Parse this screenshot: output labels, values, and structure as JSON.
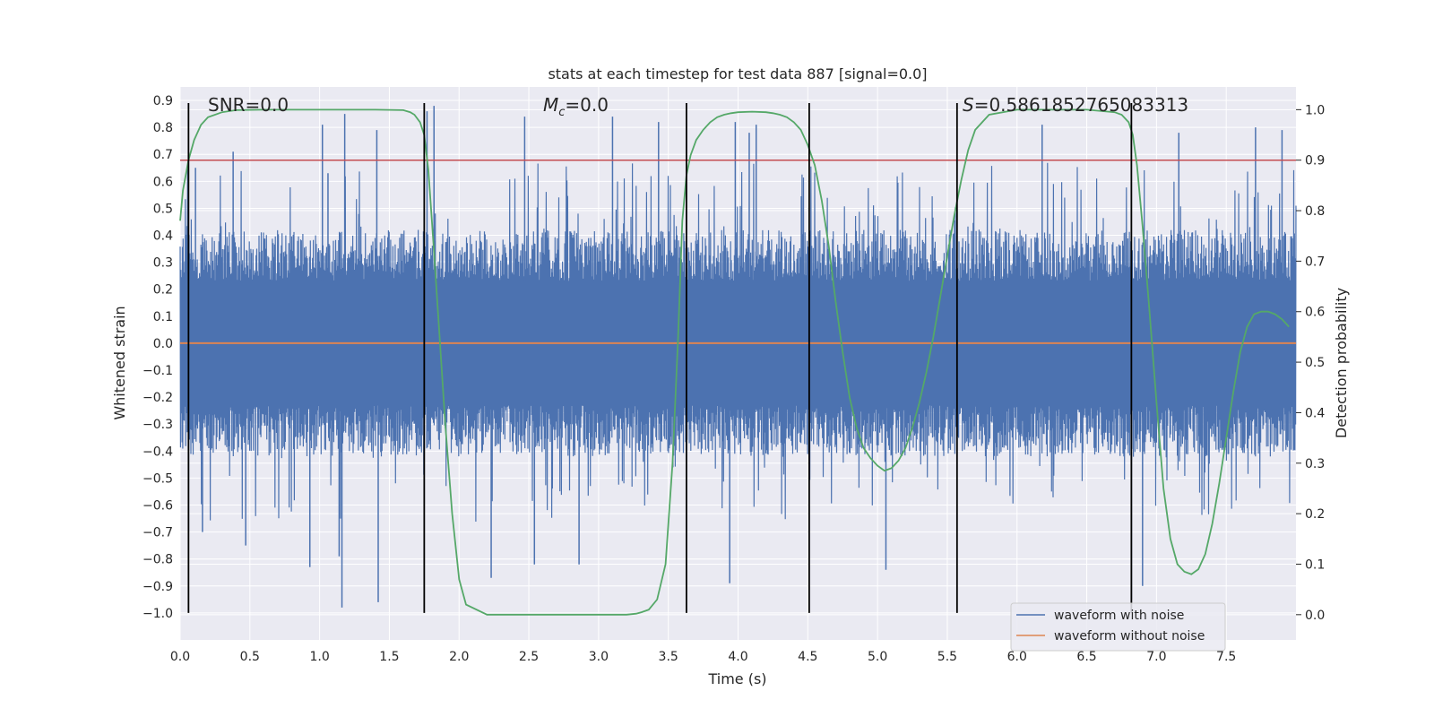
{
  "chart_data": {
    "type": "line",
    "title": "stats at each timestep for test data 887 [signal=0.0]",
    "xlabel": "Time (s)",
    "ylabel": "Whitened strain",
    "ylabel_right": "Detection probability",
    "xlim": [
      0.0,
      8.0
    ],
    "ylim": [
      -1.1,
      0.95
    ],
    "ylim_right": [
      -0.05,
      1.045
    ],
    "x_ticks": [
      0.0,
      0.5,
      1.0,
      1.5,
      2.0,
      2.5,
      3.0,
      3.5,
      4.0,
      4.5,
      5.0,
      5.5,
      6.0,
      6.5,
      7.0,
      7.5
    ],
    "x_tick_labels": [
      "0.0",
      "0.5",
      "1.0",
      "1.5",
      "2.0",
      "2.5",
      "3.0",
      "3.5",
      "4.0",
      "4.5",
      "5.0",
      "5.5",
      "6.0",
      "6.5",
      "7.0",
      "7.5"
    ],
    "y_ticks": [
      0.9,
      0.8,
      0.7,
      0.6,
      0.5,
      0.4,
      0.3,
      0.2,
      0.1,
      0.0,
      -0.1,
      -0.2,
      -0.3,
      -0.4,
      -0.5,
      -0.6,
      -0.7,
      -0.8,
      -0.9,
      -1.0
    ],
    "y_tick_labels": [
      "0.9",
      "0.8",
      "0.7",
      "0.6",
      "0.5",
      "0.4",
      "0.3",
      "0.2",
      "0.1",
      "0.0",
      "−0.1",
      "−0.2",
      "−0.3",
      "−0.4",
      "−0.5",
      "−0.6",
      "−0.7",
      "−0.8",
      "−0.9",
      "−1.0"
    ],
    "y_right_ticks": [
      1.0,
      0.9,
      0.8,
      0.7,
      0.6,
      0.5,
      0.4,
      0.3,
      0.2,
      0.1,
      0.0
    ],
    "y_right_tick_labels": [
      "1.0",
      "0.9",
      "0.8",
      "0.7",
      "0.6",
      "0.5",
      "0.4",
      "0.3",
      "0.2",
      "0.1",
      "0.0"
    ],
    "threshold": {
      "value": 0.9,
      "axis": "right",
      "color": "#c44e52"
    },
    "vertical_lines_x": [
      0.06,
      1.75,
      3.63,
      4.51,
      5.57,
      6.82
    ],
    "vertical_lines_yrange": [
      -1.0,
      0.89
    ],
    "annotations": {
      "snr": "SNR=0.0",
      "mc_symbol": "M",
      "mc_sub": "c",
      "mc_value": "=0.0",
      "s_symbol": "S",
      "s_value": "=0.5861852765083313"
    },
    "noise_band_core": [
      -0.42,
      0.42
    ],
    "series": [
      {
        "name": "waveform with noise",
        "axis": "left",
        "color": "#4c72b0",
        "style": "dense noise",
        "spike_peaks": [
          {
            "x": 0.06,
            "y": -0.7
          },
          {
            "x": 0.11,
            "y": 0.65
          },
          {
            "x": 0.16,
            "y": -0.7
          },
          {
            "x": 0.38,
            "y": 0.71
          },
          {
            "x": 0.47,
            "y": -0.75
          },
          {
            "x": 0.93,
            "y": -0.83
          },
          {
            "x": 1.02,
            "y": 0.81
          },
          {
            "x": 1.06,
            "y": 0.63
          },
          {
            "x": 1.14,
            "y": -0.79
          },
          {
            "x": 1.16,
            "y": -0.98
          },
          {
            "x": 1.18,
            "y": 0.85
          },
          {
            "x": 1.41,
            "y": 0.79
          },
          {
            "x": 1.42,
            "y": -0.96
          },
          {
            "x": 1.77,
            "y": 0.86
          },
          {
            "x": 1.82,
            "y": 0.88
          },
          {
            "x": 2.23,
            "y": -0.87
          },
          {
            "x": 2.47,
            "y": 0.84
          },
          {
            "x": 2.54,
            "y": -0.82
          },
          {
            "x": 2.86,
            "y": -0.82
          },
          {
            "x": 3.1,
            "y": 0.84
          },
          {
            "x": 3.43,
            "y": 0.82
          },
          {
            "x": 3.94,
            "y": -0.89
          },
          {
            "x": 3.98,
            "y": 0.82
          },
          {
            "x": 4.08,
            "y": 0.78
          },
          {
            "x": 4.13,
            "y": 0.81
          },
          {
            "x": 5.06,
            "y": -0.84
          },
          {
            "x": 6.18,
            "y": 0.81
          },
          {
            "x": 6.82,
            "y": -0.95
          },
          {
            "x": 6.9,
            "y": -0.9
          },
          {
            "x": 7.16,
            "y": 0.78
          },
          {
            "x": 7.71,
            "y": 0.8
          },
          {
            "x": 7.9,
            "y": 0.79
          }
        ]
      },
      {
        "name": "waveform without noise",
        "axis": "left",
        "color": "#dd8452",
        "x": [
          0.0,
          8.0
        ],
        "y": [
          0.0,
          0.0
        ]
      },
      {
        "name": "Detection probability",
        "axis": "right",
        "color": "#55a868",
        "x": [
          0.0,
          0.02,
          0.06,
          0.1,
          0.15,
          0.2,
          0.3,
          0.4,
          0.6,
          1.0,
          1.4,
          1.6,
          1.65,
          1.68,
          1.72,
          1.75,
          1.78,
          1.82,
          1.86,
          1.9,
          1.95,
          2.0,
          2.05,
          2.2,
          2.6,
          3.0,
          3.2,
          3.27,
          3.31,
          3.36,
          3.42,
          3.48,
          3.53,
          3.57,
          3.6,
          3.63,
          3.66,
          3.7,
          3.75,
          3.8,
          3.85,
          3.9,
          3.95,
          4.0,
          4.1,
          4.2,
          4.25,
          4.3,
          4.35,
          4.4,
          4.45,
          4.5,
          4.55,
          4.6,
          4.65,
          4.7,
          4.75,
          4.8,
          4.85,
          4.9,
          4.95,
          5.0,
          5.05,
          5.1,
          5.15,
          5.2,
          5.25,
          5.3,
          5.35,
          5.4,
          5.45,
          5.5,
          5.55,
          5.6,
          5.65,
          5.7,
          5.8,
          6.0,
          6.5,
          6.7,
          6.75,
          6.8,
          6.83,
          6.86,
          6.9,
          6.95,
          7.0,
          7.05,
          7.1,
          7.15,
          7.2,
          7.25,
          7.3,
          7.35,
          7.4,
          7.45,
          7.5,
          7.55,
          7.6,
          7.65,
          7.7,
          7.75,
          7.8,
          7.85,
          7.9,
          7.95
        ],
        "y": [
          0.78,
          0.84,
          0.9,
          0.94,
          0.97,
          0.985,
          0.995,
          0.999,
          1.0,
          1.0,
          1.0,
          0.999,
          0.995,
          0.99,
          0.975,
          0.95,
          0.88,
          0.72,
          0.55,
          0.38,
          0.2,
          0.07,
          0.02,
          0.0,
          0.0,
          0.0,
          0.0,
          0.002,
          0.005,
          0.01,
          0.03,
          0.1,
          0.3,
          0.55,
          0.78,
          0.87,
          0.91,
          0.94,
          0.96,
          0.975,
          0.985,
          0.99,
          0.993,
          0.995,
          0.996,
          0.995,
          0.993,
          0.99,
          0.985,
          0.975,
          0.96,
          0.93,
          0.89,
          0.82,
          0.73,
          0.62,
          0.52,
          0.43,
          0.37,
          0.33,
          0.31,
          0.295,
          0.285,
          0.29,
          0.305,
          0.33,
          0.37,
          0.42,
          0.48,
          0.55,
          0.63,
          0.71,
          0.79,
          0.86,
          0.92,
          0.96,
          0.99,
          1.0,
          1.0,
          0.995,
          0.99,
          0.975,
          0.95,
          0.89,
          0.77,
          0.6,
          0.42,
          0.25,
          0.15,
          0.1,
          0.085,
          0.08,
          0.09,
          0.12,
          0.18,
          0.26,
          0.35,
          0.44,
          0.52,
          0.57,
          0.595,
          0.6,
          0.6,
          0.595,
          0.585,
          0.57
        ]
      }
    ],
    "legend": {
      "placement": "lower-right",
      "entries": [
        "waveform with noise",
        "waveform without noise"
      ]
    },
    "colors": {
      "axes_bg": "#eaeaf2",
      "grid": "#ffffff",
      "vline": "#000000"
    }
  }
}
